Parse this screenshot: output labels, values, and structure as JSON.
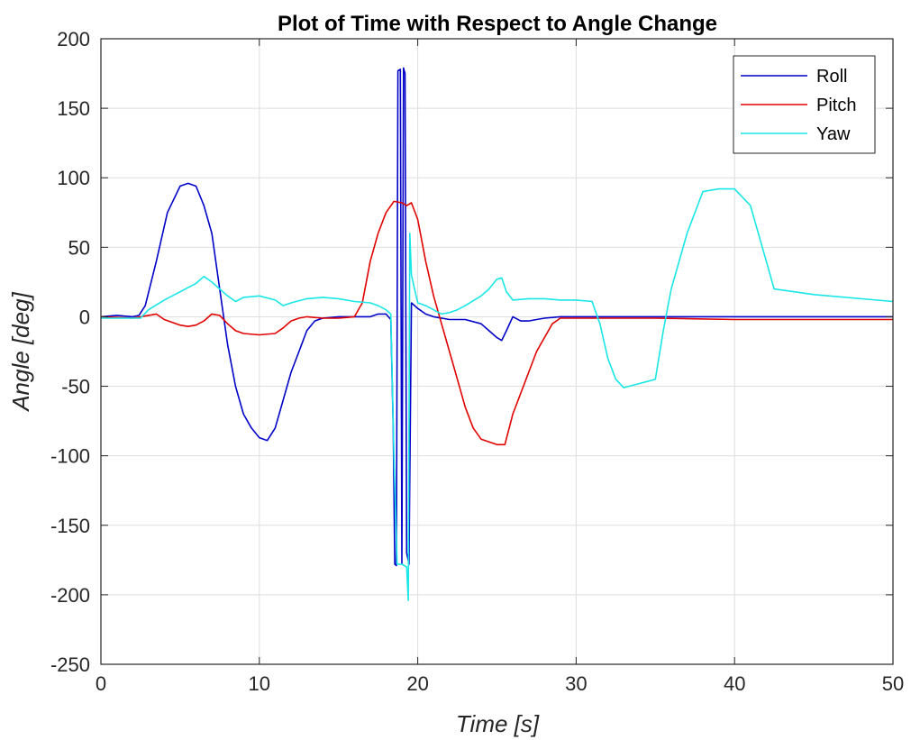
{
  "chart_data": {
    "type": "line",
    "title": "Plot of Time with Respect to Angle Change",
    "xlabel": "Time [s]",
    "ylabel": "Angle [deg]",
    "xlim": [
      0,
      50
    ],
    "ylim": [
      -250,
      200
    ],
    "xticks": [
      0,
      10,
      20,
      30,
      40,
      50
    ],
    "yticks": [
      -250,
      -200,
      -150,
      -100,
      -50,
      0,
      50,
      100,
      150,
      200
    ],
    "grid": true,
    "legend_position": "top-right",
    "series": [
      {
        "name": "Roll",
        "color": "#0000c8",
        "points": [
          [
            0,
            0
          ],
          [
            1,
            1
          ],
          [
            2,
            0
          ],
          [
            2.4,
            1
          ],
          [
            2.8,
            8
          ],
          [
            3.5,
            40
          ],
          [
            4.2,
            75
          ],
          [
            5,
            94
          ],
          [
            5.5,
            96
          ],
          [
            6,
            94
          ],
          [
            6.5,
            80
          ],
          [
            7,
            60
          ],
          [
            7.5,
            20
          ],
          [
            8,
            -20
          ],
          [
            8.5,
            -50
          ],
          [
            9,
            -70
          ],
          [
            9.5,
            -80
          ],
          [
            10,
            -87
          ],
          [
            10.5,
            -89
          ],
          [
            11,
            -80
          ],
          [
            11.5,
            -60
          ],
          [
            12,
            -40
          ],
          [
            12.5,
            -25
          ],
          [
            13,
            -10
          ],
          [
            13.5,
            -3
          ],
          [
            14,
            -1
          ],
          [
            15,
            0
          ],
          [
            16,
            0
          ],
          [
            17,
            0
          ],
          [
            17.5,
            2
          ],
          [
            18,
            2
          ],
          [
            18.3,
            -2
          ],
          [
            18.45,
            -80
          ],
          [
            18.55,
            -178
          ],
          [
            18.65,
            -179
          ],
          [
            18.75,
            177
          ],
          [
            18.9,
            178
          ],
          [
            19,
            -178
          ],
          [
            19.1,
            179
          ],
          [
            19.2,
            175
          ],
          [
            19.3,
            -170
          ],
          [
            19.45,
            -178
          ],
          [
            19.6,
            10
          ],
          [
            19.8,
            8
          ],
          [
            20,
            6
          ],
          [
            20.5,
            2
          ],
          [
            21,
            0
          ],
          [
            22,
            -2
          ],
          [
            23,
            -2
          ],
          [
            24,
            -5
          ],
          [
            24.5,
            -10
          ],
          [
            25,
            -15
          ],
          [
            25.3,
            -17
          ],
          [
            25.6,
            -10
          ],
          [
            26,
            0
          ],
          [
            26.5,
            -3
          ],
          [
            27,
            -3
          ],
          [
            27.5,
            -2
          ],
          [
            28,
            -1
          ],
          [
            29,
            0
          ],
          [
            30,
            0
          ],
          [
            31,
            0
          ],
          [
            33,
            0
          ],
          [
            36,
            0
          ],
          [
            40,
            0
          ],
          [
            45,
            0
          ],
          [
            50,
            0
          ]
        ]
      },
      {
        "name": "Pitch",
        "color": "#e10000",
        "points": [
          [
            0,
            0
          ],
          [
            2,
            -1
          ],
          [
            3,
            1
          ],
          [
            3.5,
            2
          ],
          [
            4,
            -2
          ],
          [
            5,
            -6
          ],
          [
            5.5,
            -7
          ],
          [
            6,
            -6
          ],
          [
            6.5,
            -3
          ],
          [
            7,
            2
          ],
          [
            7.5,
            1
          ],
          [
            8,
            -5
          ],
          [
            8.5,
            -10
          ],
          [
            9,
            -12
          ],
          [
            10,
            -13
          ],
          [
            11,
            -12
          ],
          [
            11.5,
            -8
          ],
          [
            12,
            -3
          ],
          [
            12.5,
            -1
          ],
          [
            13,
            0
          ],
          [
            14,
            -1
          ],
          [
            15,
            -1
          ],
          [
            16,
            0
          ],
          [
            16.5,
            10
          ],
          [
            17,
            40
          ],
          [
            17.5,
            60
          ],
          [
            18,
            75
          ],
          [
            18.5,
            83
          ],
          [
            19,
            82
          ],
          [
            19.3,
            80
          ],
          [
            19.6,
            82
          ],
          [
            20,
            70
          ],
          [
            20.5,
            40
          ],
          [
            21,
            15
          ],
          [
            21.5,
            -5
          ],
          [
            22,
            -25
          ],
          [
            22.5,
            -45
          ],
          [
            23,
            -65
          ],
          [
            23.5,
            -80
          ],
          [
            24,
            -88
          ],
          [
            25,
            -92
          ],
          [
            25.5,
            -92
          ],
          [
            26,
            -70
          ],
          [
            26.5,
            -55
          ],
          [
            27,
            -40
          ],
          [
            27.5,
            -25
          ],
          [
            28,
            -15
          ],
          [
            28.5,
            -5
          ],
          [
            29,
            -1
          ],
          [
            30,
            -1
          ],
          [
            35,
            -1
          ],
          [
            40,
            -2
          ],
          [
            45,
            -2
          ],
          [
            50,
            -2
          ]
        ]
      },
      {
        "name": "Yaw",
        "color": "#19e6e6",
        "points": [
          [
            0,
            -1
          ],
          [
            2.5,
            -1
          ],
          [
            3,
            5
          ],
          [
            4,
            12
          ],
          [
            5,
            18
          ],
          [
            6,
            24
          ],
          [
            6.5,
            29
          ],
          [
            7,
            25
          ],
          [
            7.5,
            20
          ],
          [
            8,
            15
          ],
          [
            8.5,
            11
          ],
          [
            9,
            14
          ],
          [
            10,
            15
          ],
          [
            11,
            12
          ],
          [
            11.5,
            8
          ],
          [
            12,
            10
          ],
          [
            13,
            13
          ],
          [
            14,
            14
          ],
          [
            15,
            13
          ],
          [
            16,
            11
          ],
          [
            17,
            10
          ],
          [
            17.5,
            8
          ],
          [
            18,
            5
          ],
          [
            18.3,
            2
          ],
          [
            18.5,
            -100
          ],
          [
            18.7,
            -178
          ],
          [
            19,
            -178
          ],
          [
            19.3,
            -180
          ],
          [
            19.4,
            -204
          ],
          [
            19.5,
            60
          ],
          [
            19.6,
            30
          ],
          [
            19.9,
            15
          ],
          [
            20,
            10
          ],
          [
            20.5,
            8
          ],
          [
            21,
            5
          ],
          [
            21.5,
            2
          ],
          [
            22,
            3
          ],
          [
            22.5,
            5
          ],
          [
            23,
            8
          ],
          [
            24,
            15
          ],
          [
            24.5,
            20
          ],
          [
            25,
            27
          ],
          [
            25.3,
            28
          ],
          [
            25.6,
            18
          ],
          [
            26,
            12
          ],
          [
            27,
            13
          ],
          [
            28,
            13
          ],
          [
            29,
            12
          ],
          [
            30,
            12
          ],
          [
            31,
            11
          ],
          [
            31.5,
            -5
          ],
          [
            32,
            -30
          ],
          [
            32.5,
            -45
          ],
          [
            33,
            -51
          ],
          [
            34,
            -48
          ],
          [
            35,
            -45
          ],
          [
            35.5,
            -10
          ],
          [
            36,
            20
          ],
          [
            37,
            60
          ],
          [
            38,
            90
          ],
          [
            39,
            92
          ],
          [
            40,
            92
          ],
          [
            41,
            80
          ],
          [
            42,
            40
          ],
          [
            42.5,
            20
          ],
          [
            45,
            16
          ],
          [
            50,
            11
          ]
        ]
      }
    ]
  }
}
